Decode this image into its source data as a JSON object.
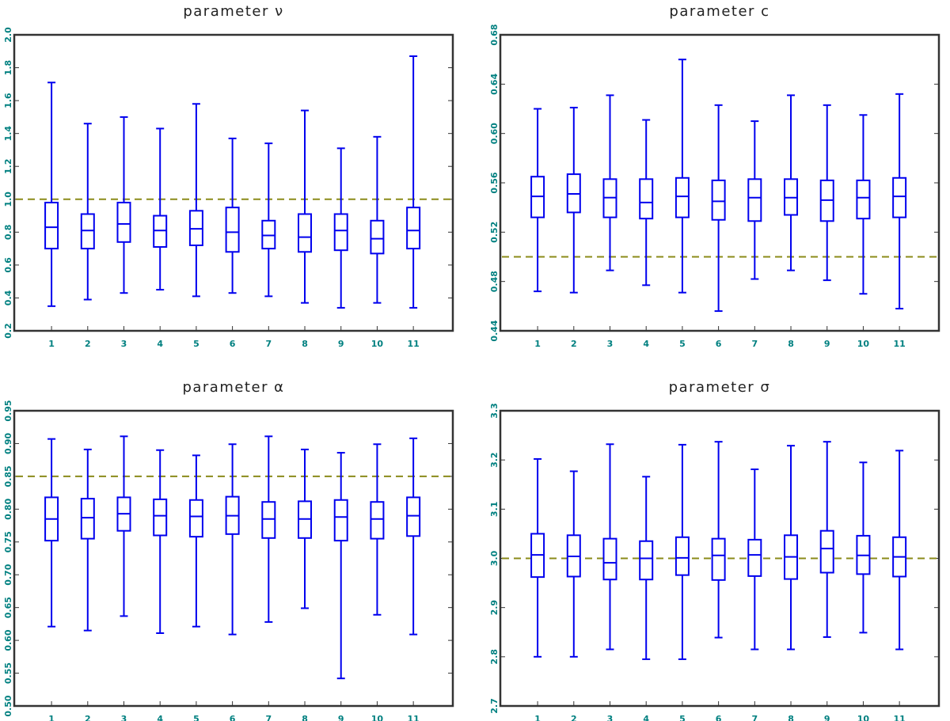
{
  "chart_data": [
    {
      "type": "box",
      "title": "parameter ν",
      "xlabel": "",
      "ylabel": "",
      "categories": [
        "1",
        "2",
        "3",
        "4",
        "5",
        "6",
        "7",
        "8",
        "9",
        "10",
        "11"
      ],
      "ylim": [
        0.2,
        2.0
      ],
      "yticks": [
        "0.2",
        "0.4",
        "0.6",
        "0.8",
        "1.0",
        "1.2",
        "1.4",
        "1.6",
        "1.8",
        "2.0"
      ],
      "reference_line": 1.0,
      "boxes": [
        {
          "min": 0.35,
          "q1": 0.7,
          "median": 0.83,
          "q3": 0.98,
          "max": 1.71
        },
        {
          "min": 0.39,
          "q1": 0.7,
          "median": 0.81,
          "q3": 0.91,
          "max": 1.46
        },
        {
          "min": 0.43,
          "q1": 0.74,
          "median": 0.85,
          "q3": 0.98,
          "max": 1.5
        },
        {
          "min": 0.45,
          "q1": 0.71,
          "median": 0.81,
          "q3": 0.9,
          "max": 1.43
        },
        {
          "min": 0.41,
          "q1": 0.72,
          "median": 0.82,
          "q3": 0.93,
          "max": 1.58
        },
        {
          "min": 0.43,
          "q1": 0.68,
          "median": 0.8,
          "q3": 0.95,
          "max": 1.37
        },
        {
          "min": 0.41,
          "q1": 0.7,
          "median": 0.78,
          "q3": 0.87,
          "max": 1.34
        },
        {
          "min": 0.37,
          "q1": 0.68,
          "median": 0.77,
          "q3": 0.91,
          "max": 1.54
        },
        {
          "min": 0.34,
          "q1": 0.69,
          "median": 0.81,
          "q3": 0.91,
          "max": 1.31
        },
        {
          "min": 0.37,
          "q1": 0.67,
          "median": 0.76,
          "q3": 0.87,
          "max": 1.38
        },
        {
          "min": 0.34,
          "q1": 0.7,
          "median": 0.81,
          "q3": 0.95,
          "max": 1.87
        }
      ]
    },
    {
      "type": "box",
      "title": "parameter c",
      "xlabel": "",
      "ylabel": "",
      "categories": [
        "1",
        "2",
        "3",
        "4",
        "5",
        "6",
        "7",
        "8",
        "9",
        "10",
        "11"
      ],
      "ylim": [
        0.44,
        0.68
      ],
      "yticks": [
        "0.44",
        "0.48",
        "0.52",
        "0.56",
        "0.60",
        "0.64",
        "0.68"
      ],
      "reference_line": 0.5,
      "boxes": [
        {
          "min": 0.472,
          "q1": 0.532,
          "median": 0.549,
          "q3": 0.565,
          "max": 0.62
        },
        {
          "min": 0.471,
          "q1": 0.536,
          "median": 0.551,
          "q3": 0.567,
          "max": 0.621
        },
        {
          "min": 0.489,
          "q1": 0.532,
          "median": 0.548,
          "q3": 0.563,
          "max": 0.631
        },
        {
          "min": 0.477,
          "q1": 0.531,
          "median": 0.544,
          "q3": 0.563,
          "max": 0.611
        },
        {
          "min": 0.471,
          "q1": 0.532,
          "median": 0.549,
          "q3": 0.564,
          "max": 0.66
        },
        {
          "min": 0.456,
          "q1": 0.53,
          "median": 0.545,
          "q3": 0.562,
          "max": 0.623
        },
        {
          "min": 0.482,
          "q1": 0.529,
          "median": 0.548,
          "q3": 0.563,
          "max": 0.61
        },
        {
          "min": 0.489,
          "q1": 0.534,
          "median": 0.548,
          "q3": 0.563,
          "max": 0.631
        },
        {
          "min": 0.481,
          "q1": 0.529,
          "median": 0.546,
          "q3": 0.562,
          "max": 0.623
        },
        {
          "min": 0.47,
          "q1": 0.531,
          "median": 0.548,
          "q3": 0.562,
          "max": 0.615
        },
        {
          "min": 0.458,
          "q1": 0.532,
          "median": 0.549,
          "q3": 0.564,
          "max": 0.632
        }
      ]
    },
    {
      "type": "box",
      "title": "parameter α",
      "xlabel": "",
      "ylabel": "",
      "categories": [
        "1",
        "2",
        "3",
        "4",
        "5",
        "6",
        "7",
        "8",
        "9",
        "10",
        "11"
      ],
      "ylim": [
        0.5,
        0.95
      ],
      "yticks": [
        "0.50",
        "0.55",
        "0.60",
        "0.65",
        "0.70",
        "0.75",
        "0.80",
        "0.85",
        "0.90",
        "0.95"
      ],
      "reference_line": 0.85,
      "boxes": [
        {
          "min": 0.621,
          "q1": 0.752,
          "median": 0.785,
          "q3": 0.818,
          "max": 0.907
        },
        {
          "min": 0.615,
          "q1": 0.755,
          "median": 0.787,
          "q3": 0.816,
          "max": 0.891
        },
        {
          "min": 0.637,
          "q1": 0.767,
          "median": 0.793,
          "q3": 0.818,
          "max": 0.911
        },
        {
          "min": 0.611,
          "q1": 0.76,
          "median": 0.79,
          "q3": 0.815,
          "max": 0.89
        },
        {
          "min": 0.621,
          "q1": 0.758,
          "median": 0.789,
          "q3": 0.814,
          "max": 0.882
        },
        {
          "min": 0.609,
          "q1": 0.762,
          "median": 0.79,
          "q3": 0.819,
          "max": 0.899
        },
        {
          "min": 0.628,
          "q1": 0.756,
          "median": 0.785,
          "q3": 0.811,
          "max": 0.911
        },
        {
          "min": 0.649,
          "q1": 0.756,
          "median": 0.785,
          "q3": 0.812,
          "max": 0.891
        },
        {
          "min": 0.542,
          "q1": 0.752,
          "median": 0.788,
          "q3": 0.814,
          "max": 0.886
        },
        {
          "min": 0.639,
          "q1": 0.755,
          "median": 0.785,
          "q3": 0.811,
          "max": 0.899
        },
        {
          "min": 0.609,
          "q1": 0.759,
          "median": 0.79,
          "q3": 0.818,
          "max": 0.908
        }
      ]
    },
    {
      "type": "box",
      "title": "parameter σ",
      "xlabel": "",
      "ylabel": "",
      "categories": [
        "1",
        "2",
        "3",
        "4",
        "5",
        "6",
        "7",
        "8",
        "9",
        "10",
        "11"
      ],
      "ylim": [
        2.7,
        3.3
      ],
      "yticks": [
        "2.7",
        "2.8",
        "2.9",
        "3.0",
        "3.1",
        "3.2",
        "3.3"
      ],
      "reference_line": 3.0,
      "boxes": [
        {
          "min": 2.8,
          "q1": 2.962,
          "median": 3.007,
          "q3": 3.05,
          "max": 3.202
        },
        {
          "min": 2.8,
          "q1": 2.963,
          "median": 3.004,
          "q3": 3.047,
          "max": 3.177
        },
        {
          "min": 2.815,
          "q1": 2.957,
          "median": 2.991,
          "q3": 3.04,
          "max": 3.232
        },
        {
          "min": 2.795,
          "q1": 2.957,
          "median": 3.0,
          "q3": 3.035,
          "max": 3.166
        },
        {
          "min": 2.795,
          "q1": 2.966,
          "median": 3.001,
          "q3": 3.043,
          "max": 3.231
        },
        {
          "min": 2.839,
          "q1": 2.956,
          "median": 3.006,
          "q3": 3.04,
          "max": 3.237
        },
        {
          "min": 2.815,
          "q1": 2.964,
          "median": 3.007,
          "q3": 3.038,
          "max": 3.181
        },
        {
          "min": 2.815,
          "q1": 2.958,
          "median": 3.003,
          "q3": 3.047,
          "max": 3.229
        },
        {
          "min": 2.84,
          "q1": 2.971,
          "median": 3.02,
          "q3": 3.056,
          "max": 3.237
        },
        {
          "min": 2.849,
          "q1": 2.968,
          "median": 3.006,
          "q3": 3.046,
          "max": 3.195
        },
        {
          "min": 2.815,
          "q1": 2.963,
          "median": 3.003,
          "q3": 3.043,
          "max": 3.219
        }
      ]
    }
  ]
}
